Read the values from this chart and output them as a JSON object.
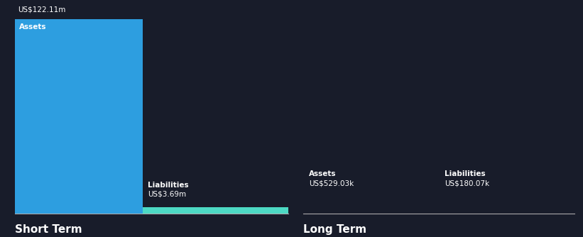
{
  "bg_color": "#181c2a",
  "text_color": "#ffffff",
  "short_term_assets": 122.11,
  "short_term_liabilities": 3.69,
  "long_term_assets": 0.52903,
  "long_term_liabilities": 0.18007,
  "short_term_assets_label": "US$122.11m",
  "short_term_liabilities_label": "US$3.69m",
  "long_term_assets_label": "US$529.03k",
  "long_term_liabilities_label": "US$180.07k",
  "asset_color": "#2d9ee0",
  "liability_color": "#4dd9c4",
  "section_label_short": "Short Term",
  "section_label_long": "Long Term",
  "assets_text": "Assets",
  "liabilities_text": "Liabilities",
  "divider_color": "#aaaaaa",
  "fig_width": 8.21,
  "fig_height": 3.34,
  "dpi": 100
}
